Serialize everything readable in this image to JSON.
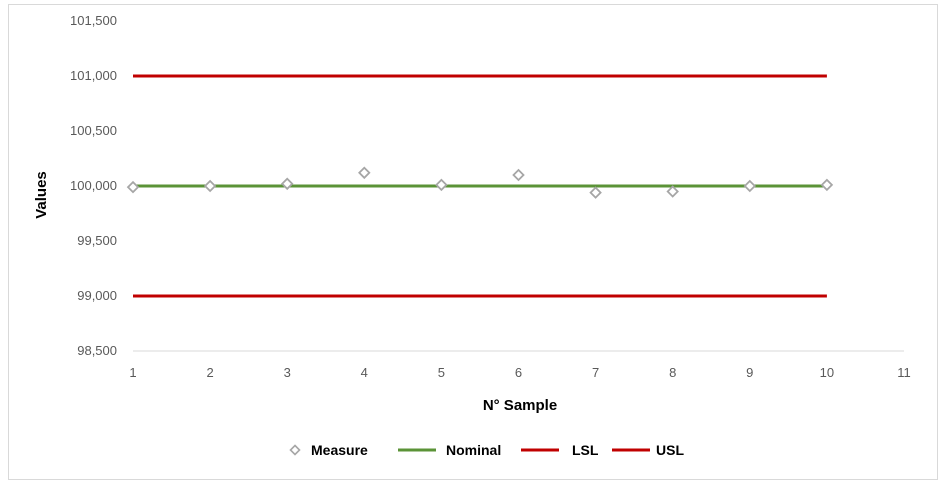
{
  "chart_data": {
    "type": "line",
    "title": "",
    "xlabel": "N° Sample",
    "ylabel": "Values",
    "xlim": [
      1,
      11
    ],
    "ylim": [
      98.5,
      101.5
    ],
    "x_ticks": [
      "1",
      "2",
      "3",
      "4",
      "5",
      "6",
      "7",
      "8",
      "9",
      "10",
      "11"
    ],
    "y_ticks": [
      {
        "value": 98.5,
        "label": "98,500"
      },
      {
        "value": 99.0,
        "label": "99,000"
      },
      {
        "value": 99.5,
        "label": "99,500"
      },
      {
        "value": 100.0,
        "label": "100,000"
      },
      {
        "value": 100.5,
        "label": "100,500"
      },
      {
        "value": 101.0,
        "label": "101,000"
      },
      {
        "value": 101.5,
        "label": "101,500"
      }
    ],
    "grid": false,
    "legend_position": "bottom",
    "series": [
      {
        "name": "Measure",
        "style": "markers",
        "marker": "diamond",
        "color": "#a6a6a6",
        "x": [
          1,
          2,
          3,
          4,
          5,
          6,
          7,
          8,
          9,
          10
        ],
        "y": [
          99.99,
          100.0,
          100.02,
          100.12,
          100.01,
          100.1,
          99.94,
          99.95,
          100.0,
          100.01
        ]
      },
      {
        "name": "Nominal",
        "style": "line",
        "color": "#5b9337",
        "x": [
          1,
          10
        ],
        "y": [
          100.0,
          100.0
        ]
      },
      {
        "name": "LSL",
        "style": "line",
        "color": "#c00000",
        "x": [
          1,
          10
        ],
        "y": [
          99.0,
          99.0
        ]
      },
      {
        "name": "USL",
        "style": "line",
        "color": "#c00000",
        "x": [
          1,
          10
        ],
        "y": [
          101.0,
          101.0
        ]
      }
    ]
  }
}
